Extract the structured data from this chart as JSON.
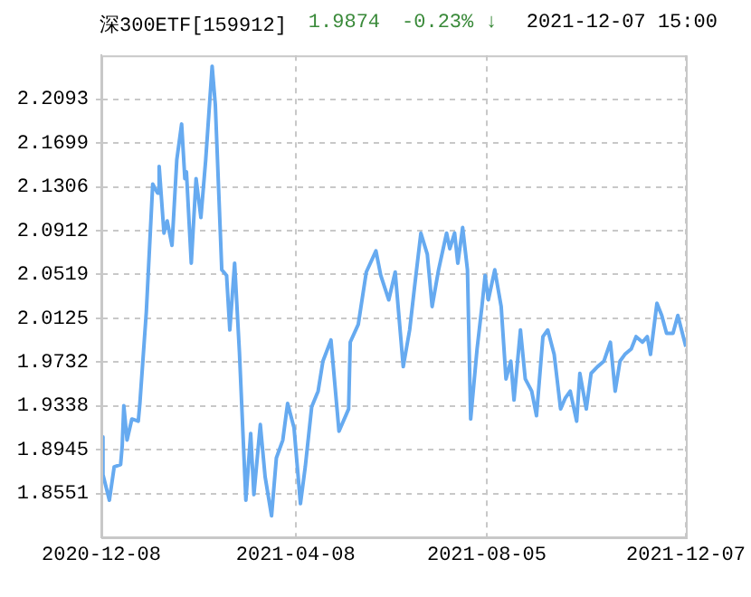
{
  "chart_data": {
    "type": "line",
    "title": "深300ETF[159912]",
    "annotations": [
      "1.9874",
      "-0.23% ↓",
      "2021-12-07 15:00"
    ],
    "x": [
      "2020-12-08",
      "2020-12-09",
      "2020-12-13",
      "2020-12-16",
      "2020-12-20",
      "2020-12-21",
      "2020-12-22",
      "2020-12-24",
      "2020-12-27",
      "2020-12-31",
      "2021-01-01",
      "2021-01-05",
      "2021-01-09",
      "2021-01-12",
      "2021-01-13",
      "2021-01-16",
      "2021-01-18",
      "2021-01-21",
      "2021-01-24",
      "2021-01-27",
      "2021-01-29",
      "2021-01-30",
      "2021-02-02",
      "2021-02-05",
      "2021-02-08",
      "2021-02-11",
      "2021-02-15",
      "2021-02-17",
      "2021-02-21",
      "2021-02-24",
      "2021-02-26",
      "2021-03-01",
      "2021-03-04",
      "2021-03-08",
      "2021-03-11",
      "2021-03-13",
      "2021-03-17",
      "2021-03-20",
      "2021-03-24",
      "2021-03-27",
      "2021-03-31",
      "2021-04-03",
      "2021-04-07",
      "2021-04-11",
      "2021-04-14",
      "2021-04-18",
      "2021-04-22",
      "2021-04-25",
      "2021-04-30",
      "2021-05-05",
      "2021-05-11",
      "2021-05-12",
      "2021-05-17",
      "2021-05-22",
      "2021-05-28",
      "2021-05-31",
      "2021-06-05",
      "2021-06-09",
      "2021-06-14",
      "2021-06-18",
      "2021-06-21",
      "2021-06-25",
      "2021-06-29",
      "2021-07-02",
      "2021-07-06",
      "2021-07-11",
      "2021-07-13",
      "2021-07-16",
      "2021-07-18",
      "2021-07-21",
      "2021-07-24",
      "2021-07-26",
      "2021-07-30",
      "2021-08-02",
      "2021-08-04",
      "2021-08-06",
      "2021-08-10",
      "2021-08-14",
      "2021-08-17",
      "2021-08-20",
      "2021-08-22",
      "2021-08-26",
      "2021-08-29",
      "2021-09-02",
      "2021-09-05",
      "2021-09-09",
      "2021-09-12",
      "2021-09-16",
      "2021-09-20",
      "2021-09-23",
      "2021-09-26",
      "2021-09-30",
      "2021-10-02",
      "2021-10-06",
      "2021-10-09",
      "2021-10-13",
      "2021-10-17",
      "2021-10-21",
      "2021-10-24",
      "2021-10-27",
      "2021-10-30",
      "2021-11-03",
      "2021-11-06",
      "2021-11-10",
      "2021-11-13",
      "2021-11-15",
      "2021-11-19",
      "2021-11-22",
      "2021-11-25",
      "2021-11-29",
      "2021-12-02",
      "2021-12-07"
    ],
    "series": [
      {
        "color": "#66aaf0",
        "values": [
          1.906,
          1.872,
          1.849,
          1.879,
          1.881,
          1.898,
          1.934,
          1.903,
          1.922,
          1.92,
          1.936,
          2.018,
          2.133,
          2.125,
          2.149,
          2.089,
          2.1,
          2.078,
          2.155,
          2.187,
          2.138,
          2.144,
          2.062,
          2.138,
          2.103,
          2.155,
          2.239,
          2.204,
          2.056,
          2.051,
          2.002,
          2.062,
          1.982,
          1.849,
          1.909,
          1.854,
          1.917,
          1.87,
          1.835,
          1.887,
          1.903,
          1.936,
          1.914,
          1.846,
          1.879,
          1.933,
          1.947,
          1.974,
          1.993,
          1.911,
          1.931,
          1.991,
          2.007,
          2.054,
          2.073,
          2.051,
          2.029,
          2.054,
          1.969,
          2.002,
          2.04,
          2.089,
          2.07,
          2.023,
          2.056,
          2.089,
          2.075,
          2.089,
          2.062,
          2.094,
          2.056,
          1.922,
          1.985,
          2.023,
          2.051,
          2.029,
          2.056,
          2.023,
          1.958,
          1.974,
          1.939,
          2.002,
          1.958,
          1.947,
          1.925,
          1.996,
          2.002,
          1.98,
          1.931,
          1.941,
          1.947,
          1.92,
          1.963,
          1.931,
          1.963,
          1.969,
          1.974,
          1.991,
          1.947,
          1.974,
          1.98,
          1.985,
          1.996,
          1.991,
          1.996,
          1.98,
          2.026,
          2.015,
          1.999,
          1.999,
          2.015,
          1.987
        ]
      }
    ],
    "xlim": [
      "2020-12-08",
      "2021-12-07"
    ],
    "xticks": [
      "2020-12-08",
      "2021-04-08",
      "2021-08-05",
      "2021-12-07"
    ],
    "ylim": [
      1.8157,
      2.2487
    ],
    "yticks": [
      1.8551,
      1.8945,
      1.9338,
      1.9732,
      2.0125,
      2.0519,
      2.0912,
      2.1306,
      2.1699,
      2.2093
    ],
    "grid": true,
    "legend": false,
    "marker": "none",
    "line_style": "solid"
  }
}
